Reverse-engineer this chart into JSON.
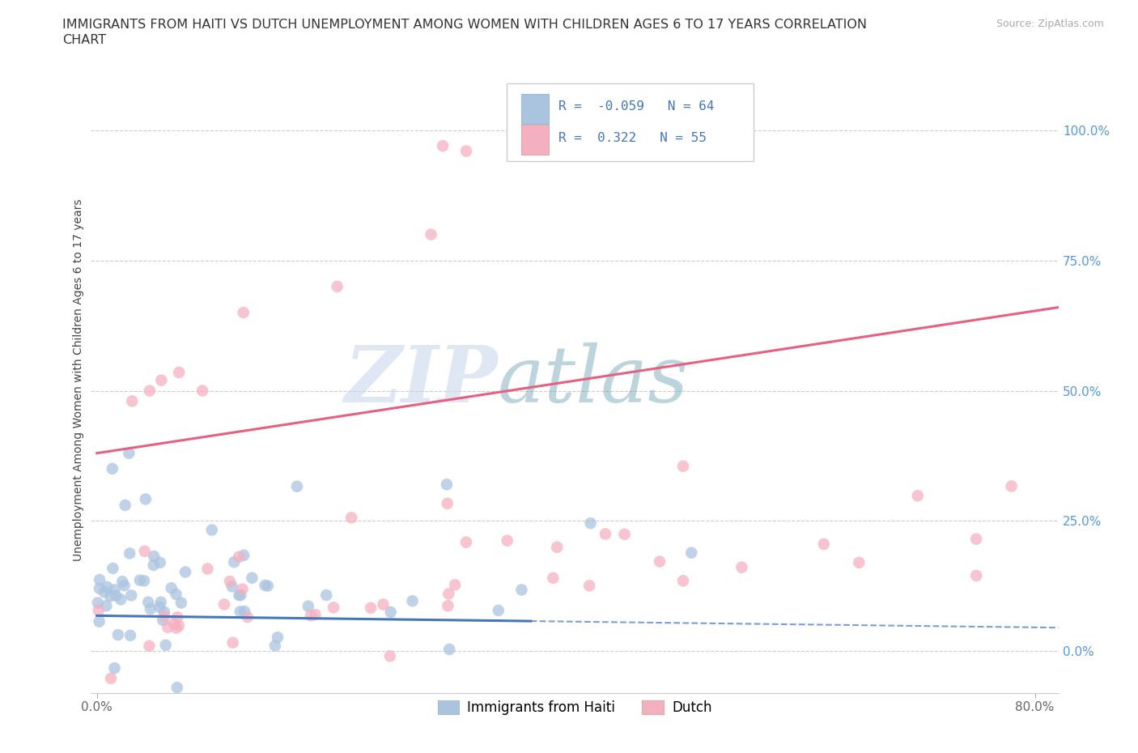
{
  "title_line1": "IMMIGRANTS FROM HAITI VS DUTCH UNEMPLOYMENT AMONG WOMEN WITH CHILDREN AGES 6 TO 17 YEARS CORRELATION",
  "title_line2": "CHART",
  "source": "Source: ZipAtlas.com",
  "ylabel": "Unemployment Among Women with Children Ages 6 to 17 years",
  "xlim": [
    -0.005,
    0.82
  ],
  "ylim": [
    -0.08,
    1.12
  ],
  "xticks": [
    0.0,
    0.8
  ],
  "xticklabels": [
    "0.0%",
    "80.0%"
  ],
  "yticks_right": [
    0.0,
    0.25,
    0.5,
    0.75,
    1.0
  ],
  "ytick_labels_right": [
    "0.0%",
    "25.0%",
    "50.0%",
    "75.0%",
    "100.0%"
  ],
  "blue_color": "#aac4e0",
  "pink_color": "#f5b0c0",
  "blue_line_color": "#4477bb",
  "pink_line_color": "#e86080",
  "grid_color": "#cccccc",
  "watermark_zip": "ZIP",
  "watermark_atlas": "atlas",
  "legend_r_blue": "R = -0.059",
  "legend_n_blue": "N = 64",
  "legend_r_pink": "R =  0.322",
  "legend_n_pink": "N = 55",
  "blue_r": -0.059,
  "blue_n": 64,
  "pink_r": 0.322,
  "pink_n": 55,
  "blue_trend_x": [
    0.0,
    0.82
  ],
  "blue_trend_y": [
    0.068,
    0.045
  ],
  "pink_trend_x": [
    0.0,
    0.82
  ],
  "pink_trend_y": [
    0.38,
    0.66
  ],
  "title_color": "#333333",
  "axis_label_color": "#444444",
  "tick_color": "#666666",
  "right_tick_color": "#5599dd"
}
